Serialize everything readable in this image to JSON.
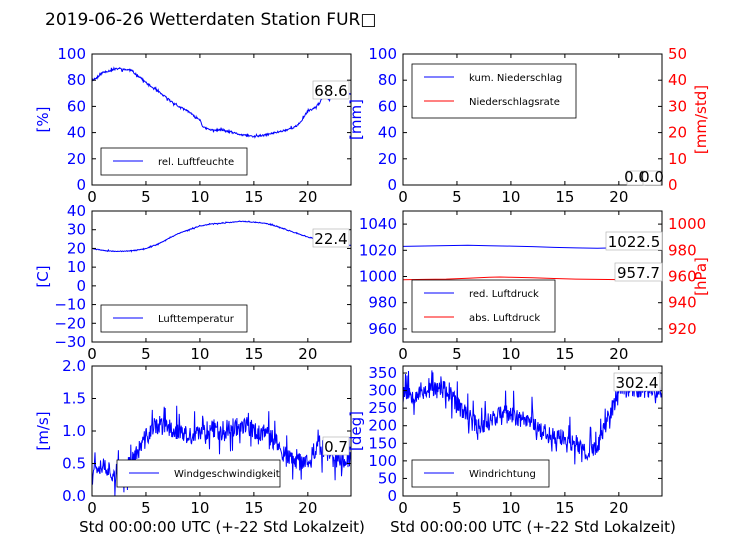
{
  "figure": {
    "title": "2019-06-26 Wetterdaten Station FUR□",
    "xlabel": "Std 00:00:00 UTC (+-22 Std Lokalzeit)"
  },
  "colors": {
    "primary": "#0000ff",
    "secondary": "#ff0000",
    "axis": "#000000"
  },
  "chart_data": [
    {
      "id": "humidity",
      "type": "line",
      "ylabel": "[%]",
      "xlim": [
        0,
        24
      ],
      "ylim": [
        0,
        100
      ],
      "xticks": [
        "0",
        "5",
        "10",
        "15",
        "20"
      ],
      "yticks": [
        "0",
        "20",
        "40",
        "60",
        "80",
        "100"
      ],
      "series": [
        {
          "name": "rel. Luftfeuchte",
          "color": "#0000ff",
          "noise": 1.2,
          "seed": 11,
          "x": [
            0,
            0.5,
            1,
            2,
            2.5,
            3,
            3.5,
            4,
            4.5,
            5,
            6,
            7,
            8,
            9,
            9.5,
            10,
            10.3,
            11,
            12,
            13,
            14,
            15,
            16,
            17,
            18,
            19,
            19.5,
            20,
            20.5,
            21,
            21.5,
            22,
            22.5,
            23,
            23.5,
            24
          ],
          "y": [
            80,
            82,
            86,
            88,
            89,
            88,
            88,
            85,
            82,
            78,
            72,
            66,
            60,
            56,
            52,
            50,
            44,
            42,
            42,
            40,
            38,
            37,
            38,
            40,
            42,
            45,
            50,
            57,
            58,
            62,
            68,
            65,
            70,
            72,
            68,
            70
          ]
        }
      ],
      "annotation": "68.6",
      "legend_position": "lower-left"
    },
    {
      "id": "precipitation",
      "type": "line",
      "ylabel": "[mm]",
      "ylabel2": "[mm/std]",
      "xlim": [
        0,
        24
      ],
      "ylim": [
        0,
        100
      ],
      "ylim2": [
        0,
        50
      ],
      "xticks": [
        "0",
        "5",
        "10",
        "15",
        "20"
      ],
      "yticks": [
        "0",
        "20",
        "40",
        "60",
        "80",
        "100"
      ],
      "yticks2": [
        "0",
        "10",
        "20",
        "30",
        "40",
        "50"
      ],
      "series": [
        {
          "name": "kum. Niederschlag",
          "color": "#0000ff",
          "x": [
            0,
            24
          ],
          "y": [
            0,
            0
          ]
        },
        {
          "name": "Niederschlagsrate",
          "color": "#ff0000",
          "axis": "right",
          "x": [
            0,
            24
          ],
          "y": [
            0,
            0
          ]
        }
      ],
      "annotation": "0.0",
      "annotation2": "0.0",
      "legend_position": "upper-left"
    },
    {
      "id": "temperature",
      "type": "line",
      "ylabel": "[C]",
      "xlim": [
        0,
        24
      ],
      "ylim": [
        -30,
        40
      ],
      "xticks": [
        "0",
        "5",
        "10",
        "15",
        "20"
      ],
      "yticks": [
        "−30",
        "−20",
        "−10",
        "0",
        "10",
        "20",
        "30",
        "40"
      ],
      "series": [
        {
          "name": "Lufttemperatur",
          "color": "#0000ff",
          "noise": 0.3,
          "seed": 23,
          "x": [
            0,
            1,
            2,
            3,
            4,
            5,
            6,
            7,
            8,
            9,
            10,
            11,
            12,
            13,
            14,
            15,
            16,
            17,
            18,
            19,
            20,
            21,
            22,
            23,
            24
          ],
          "y": [
            20,
            19,
            18.5,
            18.5,
            19,
            20,
            22,
            25,
            28,
            30,
            32,
            33,
            33.5,
            34,
            34.5,
            34,
            33.5,
            32,
            30,
            28,
            26,
            25,
            23,
            22.5,
            21.5
          ]
        }
      ],
      "annotation": "22.4",
      "legend_position": "lower-left"
    },
    {
      "id": "pressure",
      "type": "line",
      "ylabel2": "[hPa]",
      "xlim": [
        0,
        24
      ],
      "ylim": [
        950,
        1050
      ],
      "ylim2": [
        910,
        1010
      ],
      "xticks": [
        "0",
        "5",
        "10",
        "15",
        "20"
      ],
      "yticks": [
        "960",
        "980",
        "1000",
        "1020",
        "1040"
      ],
      "yticks2": [
        "920",
        "940",
        "960",
        "980",
        "1000"
      ],
      "series": [
        {
          "name": "red. Luftdruck",
          "color": "#0000ff",
          "x": [
            0,
            2,
            4,
            6,
            8,
            10,
            12,
            14,
            16,
            18,
            20,
            22,
            24
          ],
          "y": [
            1023,
            1023.3,
            1023.6,
            1023.8,
            1023.5,
            1023.2,
            1022.8,
            1022.2,
            1021.8,
            1021.6,
            1022,
            1022.3,
            1022.5
          ]
        },
        {
          "name": "abs. Luftdruck",
          "color": "#ff0000",
          "axis": "right",
          "x": [
            0,
            2,
            4,
            6,
            8,
            9,
            10,
            12,
            14,
            16,
            18,
            20,
            22,
            24
          ],
          "y": [
            957.5,
            957.8,
            958,
            958.6,
            959.5,
            959.6,
            959.4,
            959,
            958.5,
            958,
            957.8,
            957.6,
            957.6,
            957.7
          ]
        }
      ],
      "annotation": "1022.5",
      "annotation2": "957.7",
      "legend_position": "lower-left"
    },
    {
      "id": "windspeed",
      "type": "line",
      "ylabel": "[m/s]",
      "xlim": [
        0,
        24
      ],
      "ylim": [
        0,
        2
      ],
      "xticks": [
        "0",
        "5",
        "10",
        "15",
        "20"
      ],
      "yticks": [
        "0.0",
        "0.5",
        "1.0",
        "1.5",
        "2.0"
      ],
      "series": [
        {
          "name": "Windgeschwindigkeit",
          "color": "#0000ff",
          "noise": 0.25,
          "seed": 37,
          "x": [
            0,
            1,
            2,
            3,
            4,
            5,
            6,
            7,
            8,
            9,
            10,
            11,
            12,
            13,
            14,
            15,
            16,
            17,
            18,
            19,
            20,
            21,
            22,
            23,
            24
          ],
          "y": [
            0.45,
            0.5,
            0.35,
            0.4,
            0.6,
            0.9,
            1.1,
            1.05,
            1.0,
            0.9,
            0.95,
            1.05,
            1.0,
            1.05,
            1.1,
            1.0,
            0.95,
            0.85,
            0.6,
            0.5,
            0.55,
            0.8,
            0.6,
            0.55,
            0.6
          ]
        }
      ],
      "annotation": "0.7",
      "legend_position": "lower-center"
    },
    {
      "id": "winddirection",
      "type": "line",
      "ylabel": "[deg]",
      "xlim": [
        0,
        24
      ],
      "ylim": [
        0,
        370
      ],
      "xticks": [
        "0",
        "5",
        "10",
        "15",
        "20"
      ],
      "yticks": [
        "0",
        "50",
        "100",
        "150",
        "200",
        "250",
        "300",
        "350"
      ],
      "series": [
        {
          "name": "Windrichtung",
          "color": "#0000ff",
          "noise": 45,
          "seed": 53,
          "x": [
            0,
            1,
            2,
            3,
            4,
            5,
            6,
            7,
            8,
            9,
            10,
            11,
            12,
            13,
            14,
            15,
            16,
            17,
            18,
            19,
            20,
            21,
            22,
            23,
            24
          ],
          "y": [
            300,
            290,
            300,
            305,
            300,
            260,
            220,
            200,
            215,
            235,
            230,
            220,
            215,
            180,
            170,
            160,
            150,
            120,
            140,
            220,
            300,
            310,
            300,
            305,
            300
          ]
        }
      ],
      "annotation": "302.4",
      "legend_position": "lower-left"
    }
  ]
}
